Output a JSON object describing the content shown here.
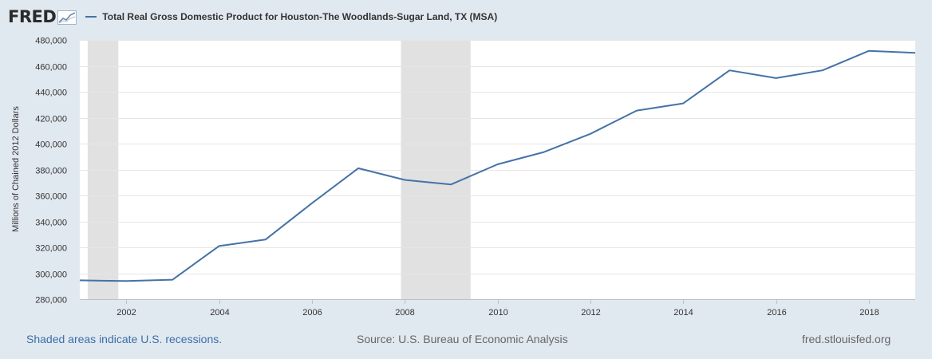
{
  "header": {
    "logo_text": "FRED",
    "logo_icon": "line-graph-icon"
  },
  "footer": {
    "recession_note": "Shaded areas indicate U.S. recessions.",
    "source": "Source: U.S. Bureau of Economic Analysis",
    "site": "fred.stlouisfed.org"
  },
  "colors": {
    "series_line": "#4572a7",
    "recession_shade": "#e1e1e1",
    "page_background": "#e1e9f0",
    "plot_background": "#ffffff",
    "link_text": "#3a6ea8"
  },
  "chart_data": {
    "type": "line",
    "ylabel": "Millions of Chained 2012 Dollars",
    "xlim": [
      2001.0,
      2019.0
    ],
    "ylim": [
      280000,
      480000
    ],
    "y_ticks": [
      280000,
      300000,
      320000,
      340000,
      360000,
      380000,
      400000,
      420000,
      440000,
      460000,
      480000
    ],
    "y_tick_labels": [
      "280,000",
      "300,000",
      "320,000",
      "340,000",
      "360,000",
      "380,000",
      "400,000",
      "420,000",
      "440,000",
      "460,000",
      "480,000"
    ],
    "x_ticks": [
      2002,
      2004,
      2006,
      2008,
      2010,
      2012,
      2014,
      2016,
      2018
    ],
    "x_tick_labels": [
      "2002",
      "2004",
      "2006",
      "2008",
      "2010",
      "2012",
      "2014",
      "2016",
      "2018"
    ],
    "grid": true,
    "legend_position": "top-left",
    "series": [
      {
        "name": "Total Real Gross Domestic Product for Houston-The Woodlands-Sugar Land, TX (MSA)",
        "x": [
          2001,
          2002,
          2003,
          2004,
          2005,
          2006,
          2007,
          2008,
          2009,
          2010,
          2011,
          2012,
          2013,
          2014,
          2015,
          2016,
          2017,
          2018,
          2019
        ],
        "values": [
          294500,
          294000,
          295000,
          321000,
          326000,
          354000,
          381000,
          372000,
          368500,
          384000,
          393500,
          407500,
          425500,
          431000,
          456500,
          450500,
          456500,
          471500,
          470000
        ]
      }
    ],
    "recessions": [
      {
        "start": 2001.17,
        "end": 2001.83
      },
      {
        "start": 2007.92,
        "end": 2009.42
      }
    ]
  }
}
